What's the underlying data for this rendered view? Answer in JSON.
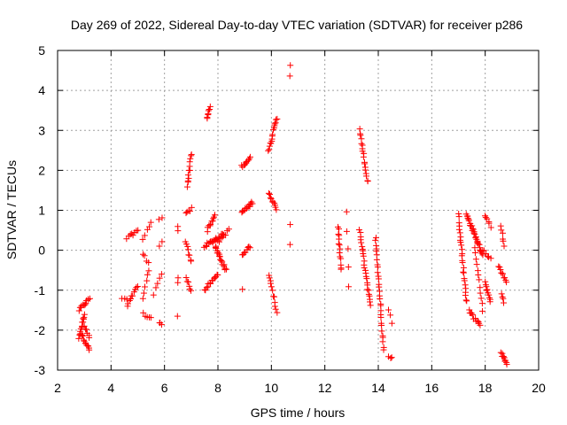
{
  "chart_data": {
    "type": "scatter",
    "title": "Day 269 of 2022, Sidereal Day-to-day VTEC variation (SDTVAR) for receiver p286",
    "xlabel": "GPS time / hours",
    "ylabel": "SDTVAR / TECUs",
    "xlim": [
      2,
      20
    ],
    "ylim": [
      -3,
      5
    ],
    "xticks": [
      2,
      4,
      6,
      8,
      10,
      12,
      14,
      16,
      18,
      20
    ],
    "yticks": [
      -3,
      -2,
      -1,
      0,
      1,
      2,
      3,
      4,
      5
    ],
    "grid": true,
    "marker": "plus",
    "color": "#ff0000",
    "series": [
      {
        "name": "SDTVAR",
        "clusters": [
          {
            "x0": 2.8,
            "y0": -1.5,
            "x1": 3.2,
            "y1": -1.2,
            "n": 12
          },
          {
            "x0": 2.8,
            "y0": -2.2,
            "x1": 3.0,
            "y1": -1.6,
            "n": 14
          },
          {
            "x0": 2.9,
            "y0": -2.1,
            "x1": 3.2,
            "y1": -2.5,
            "n": 12
          },
          {
            "x0": 3.0,
            "y0": -1.9,
            "x1": 3.2,
            "y1": -2.2,
            "n": 6
          },
          {
            "x0": 4.4,
            "y0": -1.2,
            "x1": 4.6,
            "y1": -1.25,
            "n": 3
          },
          {
            "x0": 4.6,
            "y0": -1.4,
            "x1": 5.0,
            "y1": -0.9,
            "n": 10
          },
          {
            "x0": 4.6,
            "y0": 0.3,
            "x1": 5.0,
            "y1": 0.5,
            "n": 8
          },
          {
            "x0": 5.2,
            "y0": -1.6,
            "x1": 5.5,
            "y1": -1.7,
            "n": 5
          },
          {
            "x0": 5.2,
            "y0": -1.2,
            "x1": 5.4,
            "y1": -0.5,
            "n": 6
          },
          {
            "x0": 5.2,
            "y0": -0.1,
            "x1": 5.4,
            "y1": -0.3,
            "n": 4
          },
          {
            "x0": 5.2,
            "y0": 0.3,
            "x1": 5.5,
            "y1": 0.7,
            "n": 5
          },
          {
            "x0": 5.8,
            "y0": -1.8,
            "x1": 5.9,
            "y1": -1.9,
            "n": 3
          },
          {
            "x0": 5.6,
            "y0": -1.1,
            "x1": 5.9,
            "y1": -0.6,
            "n": 5
          },
          {
            "x0": 5.8,
            "y0": 0.1,
            "x1": 5.9,
            "y1": 0.2,
            "n": 2
          },
          {
            "x0": 5.8,
            "y0": 0.8,
            "x1": 5.9,
            "y1": 0.85,
            "n": 2
          },
          {
            "x0": 6.5,
            "y0": -1.65,
            "x1": 6.5,
            "y1": -1.65,
            "n": 1
          },
          {
            "x0": 6.5,
            "y0": -0.8,
            "x1": 6.5,
            "y1": -0.7,
            "n": 2
          },
          {
            "x0": 6.5,
            "y0": 0.5,
            "x1": 6.5,
            "y1": 0.6,
            "n": 2
          },
          {
            "x0": 6.85,
            "y0": 1.6,
            "x1": 7.0,
            "y1": 2.4,
            "n": 12
          },
          {
            "x0": 6.8,
            "y0": 0.9,
            "x1": 7.0,
            "y1": 1.05,
            "n": 5
          },
          {
            "x0": 6.8,
            "y0": 0.2,
            "x1": 7.0,
            "y1": -0.3,
            "n": 8
          },
          {
            "x0": 6.8,
            "y0": -0.7,
            "x1": 7.0,
            "y1": -1.0,
            "n": 6
          },
          {
            "x0": 7.6,
            "y0": 3.3,
            "x1": 7.7,
            "y1": 3.6,
            "n": 8
          },
          {
            "x0": 7.5,
            "y0": -1.0,
            "x1": 8.0,
            "y1": -0.6,
            "n": 14
          },
          {
            "x0": 7.5,
            "y0": 0.1,
            "x1": 8.2,
            "y1": 0.4,
            "n": 20
          },
          {
            "x0": 7.6,
            "y0": 0.5,
            "x1": 7.9,
            "y1": 0.9,
            "n": 10
          },
          {
            "x0": 7.9,
            "y0": 0.1,
            "x1": 8.3,
            "y1": -0.5,
            "n": 18
          },
          {
            "x0": 8.0,
            "y0": 0.2,
            "x1": 8.4,
            "y1": 0.5,
            "n": 8
          },
          {
            "x0": 8.9,
            "y0": 0.95,
            "x1": 9.3,
            "y1": 1.2,
            "n": 14
          },
          {
            "x0": 8.9,
            "y0": 2.1,
            "x1": 9.2,
            "y1": 2.3,
            "n": 10
          },
          {
            "x0": 8.9,
            "y0": -0.1,
            "x1": 9.2,
            "y1": 0.1,
            "n": 8
          },
          {
            "x0": 8.9,
            "y0": -0.95,
            "x1": 8.9,
            "y1": -0.95,
            "n": 1
          },
          {
            "x0": 9.9,
            "y0": 2.5,
            "x1": 10.2,
            "y1": 3.3,
            "n": 16
          },
          {
            "x0": 9.9,
            "y0": 1.45,
            "x1": 10.2,
            "y1": 1.0,
            "n": 10
          },
          {
            "x0": 9.9,
            "y0": -0.6,
            "x1": 10.2,
            "y1": -1.55,
            "n": 12
          },
          {
            "x0": 10.7,
            "y0": 4.65,
            "x1": 10.7,
            "y1": 4.35,
            "n": 2
          },
          {
            "x0": 10.7,
            "y0": 0.65,
            "x1": 10.7,
            "y1": 0.15,
            "n": 2
          },
          {
            "x0": 12.5,
            "y0": 0.6,
            "x1": 12.6,
            "y1": -0.5,
            "n": 14
          },
          {
            "x0": 12.8,
            "y0": 0.95,
            "x1": 12.9,
            "y1": -0.9,
            "n": 5
          },
          {
            "x0": 13.3,
            "y0": 3.0,
            "x1": 13.6,
            "y1": 1.7,
            "n": 18
          },
          {
            "x0": 13.3,
            "y0": 0.5,
            "x1": 13.7,
            "y1": -1.4,
            "n": 26
          },
          {
            "x0": 13.9,
            "y0": 0.35,
            "x1": 14.2,
            "y1": -2.5,
            "n": 30
          },
          {
            "x0": 14.4,
            "y0": -1.5,
            "x1": 14.5,
            "y1": -1.8,
            "n": 3
          },
          {
            "x0": 14.4,
            "y0": -2.65,
            "x1": 14.5,
            "y1": -2.7,
            "n": 3
          },
          {
            "x0": 17.0,
            "y0": 0.9,
            "x1": 17.3,
            "y1": -1.3,
            "n": 26
          },
          {
            "x0": 17.3,
            "y0": 0.9,
            "x1": 17.9,
            "y1": -0.1,
            "n": 30
          },
          {
            "x0": 17.4,
            "y0": -1.5,
            "x1": 17.8,
            "y1": -1.9,
            "n": 12
          },
          {
            "x0": 17.6,
            "y0": 0.1,
            "x1": 17.9,
            "y1": -1.5,
            "n": 12
          },
          {
            "x0": 18.0,
            "y0": 0.85,
            "x1": 18.2,
            "y1": 0.6,
            "n": 6
          },
          {
            "x0": 18.0,
            "y0": -0.8,
            "x1": 18.2,
            "y1": -1.3,
            "n": 10
          },
          {
            "x0": 17.9,
            "y0": 0.0,
            "x1": 18.2,
            "y1": -0.2,
            "n": 6
          },
          {
            "x0": 18.6,
            "y0": 0.6,
            "x1": 18.7,
            "y1": 0.1,
            "n": 6
          },
          {
            "x0": 18.5,
            "y0": -0.4,
            "x1": 18.8,
            "y1": -0.8,
            "n": 10
          },
          {
            "x0": 18.6,
            "y0": -1.1,
            "x1": 18.7,
            "y1": -1.3,
            "n": 4
          },
          {
            "x0": 18.6,
            "y0": -2.55,
            "x1": 18.8,
            "y1": -2.85,
            "n": 10
          }
        ]
      }
    ]
  }
}
